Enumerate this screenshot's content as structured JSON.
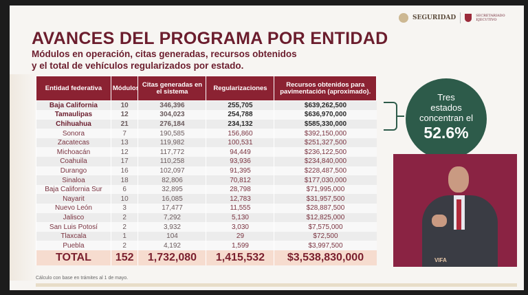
{
  "title": "AVANCES DEL PROGRAMA POR ENTIDAD",
  "subtitle_line1": "Módulos en operación, citas generadas, recursos obtenidos",
  "subtitle_line2": "y el total de vehículos regularizados por estado.",
  "logos": {
    "seguridad": "SEGURIDAD",
    "secretariado": "SECRETARIADO EJECUTIVO"
  },
  "table": {
    "headers": [
      "Entidad federativa",
      "Módulos",
      "Citas generadas en el sistema",
      "Regularizaciones",
      "Recursos obtenidos para pavimentación (aproximado)."
    ],
    "rows": [
      [
        "Baja California",
        "10",
        "346,396",
        "255,705",
        "$639,262,500"
      ],
      [
        "Tamaulipas",
        "12",
        "304,023",
        "254,788",
        "$636,970,000"
      ],
      [
        "Chihuahua",
        "21",
        "276,184",
        "234,132",
        "$585,330,000"
      ],
      [
        "Sonora",
        "7",
        "190,585",
        "156,860",
        "$392,150,000"
      ],
      [
        "Zacatecas",
        "13",
        "119,982",
        "100,531",
        "$251,327,500"
      ],
      [
        "Michoacán",
        "12",
        "117,772",
        "94,449",
        "$236,122,500"
      ],
      [
        "Coahuila",
        "17",
        "110,258",
        "93,936",
        "$234,840,000"
      ],
      [
        "Durango",
        "16",
        "102,097",
        "91,395",
        "$228,487,500"
      ],
      [
        "Sinaloa",
        "18",
        "82,806",
        "70,812",
        "$177,030,000"
      ],
      [
        "Baja California Sur",
        "6",
        "32,895",
        "28,798",
        "$71,995,000"
      ],
      [
        "Nayarit",
        "10",
        "16,085",
        "12,783",
        "$31,957,500"
      ],
      [
        "Nuevo León",
        "3",
        "17,477",
        "11,555",
        "$28,887,500"
      ],
      [
        "Jalisco",
        "2",
        "7,292",
        "5,130",
        "$12,825,000"
      ],
      [
        "San Luis Potosí",
        "2",
        "3,932",
        "3,030",
        "$7,575,000"
      ],
      [
        "Tlaxcala",
        "1",
        "104",
        "29",
        "$72,500"
      ],
      [
        "Puebla",
        "2",
        "4,192",
        "1,599",
        "$3,997,500"
      ]
    ],
    "total": [
      "TOTAL",
      "152",
      "1,732,080",
      "1,415,532",
      "$3,538,830,000"
    ]
  },
  "footnote": "Cálculo con base en trámites al 1 de mayo.",
  "callout": {
    "line1": "Tres",
    "line2": "estados",
    "line3": "concentran el",
    "percent": "52.6%"
  },
  "video_watermark": "VIFA",
  "colors": {
    "primary": "#6b1d2d",
    "header": "#8b2232",
    "callout": "#2d5b4a",
    "total_bg": "#f6dccf"
  }
}
